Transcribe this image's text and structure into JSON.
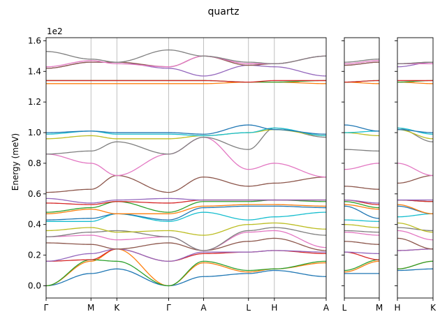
{
  "chart_data": {
    "type": "line",
    "title": "quartz",
    "ylabel": "Energy (meV)",
    "y_multiplier_label": "1e2",
    "ylim": [
      -0.08,
      1.62
    ],
    "y_ticks": [
      0.0,
      0.2,
      0.4,
      0.6,
      0.8,
      1.0,
      1.2,
      1.4,
      1.6
    ],
    "y_tick_labels": [
      "0.0",
      "0.2",
      "0.4",
      "0.6",
      "0.8",
      "1.0",
      "1.2",
      "1.4",
      "1.6"
    ],
    "grid": "vertical lines at high-symmetry points",
    "panels": [
      {
        "path": [
          "Γ",
          "M",
          "K",
          "Γ",
          "A",
          "L",
          "H",
          "A"
        ],
        "x_ticks": [
          0.0,
          0.5774,
          0.9107,
          1.5774,
          2.0274,
          2.6048,
          2.9381,
          3.6048
        ]
      },
      {
        "path": [
          "L",
          "M"
        ],
        "x_ticks": [
          0.0,
          0.45
        ]
      },
      {
        "path": [
          "H",
          "K"
        ],
        "x_ticks": [
          0.0,
          0.45
        ]
      }
    ],
    "series_colors": [
      "#1f77b4",
      "#ff7f0e",
      "#2ca02c",
      "#d62728",
      "#9467bd",
      "#8c564b",
      "#e377c2",
      "#7f7f7f",
      "#bcbd22",
      "#17becf"
    ],
    "bands_segment_endpoints": [
      [
        [
          0,
          0.08,
          0.11,
          0,
          0.06,
          0.08,
          0.1,
          0.06
        ],
        [
          0.08,
          0.08
        ],
        [
          0.1,
          0.11
        ]
      ],
      [
        [
          0,
          0.16,
          0.24,
          0,
          0.15,
          0.09,
          0.11,
          0.15
        ],
        [
          0.09,
          0.16
        ],
        [
          0.11,
          0.16
        ]
      ],
      [
        [
          0,
          0.17,
          0.16,
          0,
          0.16,
          0.1,
          0.11,
          0.16
        ],
        [
          0.1,
          0.17
        ],
        [
          0.11,
          0.16
        ]
      ],
      [
        [
          0.16,
          0.17,
          0.24,
          0.16,
          0.21,
          0.22,
          0.23,
          0.21
        ],
        [
          0.22,
          0.17
        ],
        [
          0.23,
          0.24
        ]
      ],
      [
        [
          0.16,
          0.21,
          0.24,
          0.16,
          0.22,
          0.22,
          0.23,
          0.22
        ],
        [
          0.22,
          0.21
        ],
        [
          0.23,
          0.24
        ]
      ],
      [
        [
          0.28,
          0.27,
          0.24,
          0.28,
          0.23,
          0.29,
          0.31,
          0.23
        ],
        [
          0.29,
          0.27
        ],
        [
          0.31,
          0.24
        ]
      ],
      [
        [
          0.32,
          0.33,
          0.3,
          0.32,
          0.23,
          0.35,
          0.36,
          0.25
        ],
        [
          0.35,
          0.33
        ],
        [
          0.36,
          0.3
        ]
      ],
      [
        [
          0.32,
          0.35,
          0.36,
          0.32,
          0.23,
          0.36,
          0.38,
          0.33
        ],
        [
          0.36,
          0.35
        ],
        [
          0.38,
          0.36
        ]
      ],
      [
        [
          0.36,
          0.38,
          0.35,
          0.36,
          0.33,
          0.4,
          0.41,
          0.37
        ],
        [
          0.4,
          0.38
        ],
        [
          0.41,
          0.35
        ]
      ],
      [
        [
          0.42,
          0.42,
          0.47,
          0.42,
          0.48,
          0.43,
          0.45,
          0.48
        ],
        [
          0.43,
          0.42
        ],
        [
          0.45,
          0.47
        ]
      ],
      [
        [
          0.43,
          0.44,
          0.47,
          0.43,
          0.51,
          0.52,
          0.52,
          0.51
        ],
        [
          0.52,
          0.44
        ],
        [
          0.52,
          0.47
        ]
      ],
      [
        [
          0.47,
          0.5,
          0.47,
          0.47,
          0.52,
          0.53,
          0.53,
          0.52
        ],
        [
          0.53,
          0.5
        ],
        [
          0.53,
          0.47
        ]
      ],
      [
        [
          0.48,
          0.51,
          0.55,
          0.48,
          0.55,
          0.55,
          0.56,
          0.55
        ],
        [
          0.55,
          0.51
        ],
        [
          0.56,
          0.55
        ]
      ],
      [
        [
          0.54,
          0.53,
          0.55,
          0.54,
          0.56,
          0.56,
          0.56,
          0.56
        ],
        [
          0.56,
          0.53
        ],
        [
          0.56,
          0.55
        ]
      ],
      [
        [
          0.57,
          0.54,
          0.56,
          0.57,
          0.56,
          0.56,
          0.56,
          0.56
        ],
        [
          0.56,
          0.54
        ],
        [
          0.56,
          0.56
        ]
      ],
      [
        [
          0.61,
          0.63,
          0.72,
          0.61,
          0.71,
          0.65,
          0.67,
          0.71
        ],
        [
          0.65,
          0.63
        ],
        [
          0.67,
          0.72
        ]
      ],
      [
        [
          0.86,
          0.8,
          0.72,
          0.86,
          0.97,
          0.76,
          0.8,
          0.71
        ],
        [
          0.76,
          0.8
        ],
        [
          0.8,
          0.72
        ]
      ],
      [
        [
          0.86,
          0.88,
          0.94,
          0.86,
          0.97,
          0.89,
          1.03,
          0.97
        ],
        [
          0.89,
          0.88
        ],
        [
          1.03,
          0.94
        ]
      ],
      [
        [
          0.96,
          0.98,
          0.96,
          0.96,
          0.98,
          1.0,
          1.02,
          0.98
        ],
        [
          1.0,
          0.98
        ],
        [
          1.02,
          0.96
        ]
      ],
      [
        [
          0.99,
          1.01,
          0.99,
          0.99,
          0.98,
          1.0,
          1.03,
          0.98
        ],
        [
          1.0,
          1.01
        ],
        [
          1.03,
          0.99
        ]
      ],
      [
        [
          1.0,
          1.01,
          1.0,
          1.0,
          0.99,
          1.05,
          1.02,
          0.99
        ],
        [
          1.05,
          1.01
        ],
        [
          1.02,
          1.0
        ]
      ],
      [
        [
          1.32,
          1.32,
          1.32,
          1.32,
          1.32,
          1.33,
          1.33,
          1.32
        ],
        [
          1.33,
          1.32
        ],
        [
          1.33,
          1.32
        ]
      ],
      [
        [
          1.34,
          1.34,
          1.34,
          1.34,
          1.34,
          1.33,
          1.33,
          1.34
        ],
        [
          1.33,
          1.34
        ],
        [
          1.33,
          1.34
        ]
      ],
      [
        [
          1.34,
          1.34,
          1.34,
          1.34,
          1.34,
          1.33,
          1.34,
          1.34
        ],
        [
          1.33,
          1.34
        ],
        [
          1.34,
          1.34
        ]
      ],
      [
        [
          1.42,
          1.46,
          1.46,
          1.42,
          1.37,
          1.44,
          1.43,
          1.37
        ],
        [
          1.44,
          1.46
        ],
        [
          1.43,
          1.46
        ]
      ],
      [
        [
          1.42,
          1.46,
          1.46,
          1.43,
          1.5,
          1.44,
          1.45,
          1.5
        ],
        [
          1.44,
          1.46
        ],
        [
          1.45,
          1.46
        ]
      ],
      [
        [
          1.43,
          1.47,
          1.45,
          1.43,
          1.5,
          1.45,
          1.45,
          1.5
        ],
        [
          1.45,
          1.47
        ],
        [
          1.45,
          1.45
        ]
      ],
      [
        [
          1.53,
          1.48,
          1.46,
          1.54,
          1.5,
          1.46,
          1.45,
          1.5
        ],
        [
          1.46,
          1.48
        ],
        [
          1.45,
          1.46
        ]
      ]
    ]
  }
}
